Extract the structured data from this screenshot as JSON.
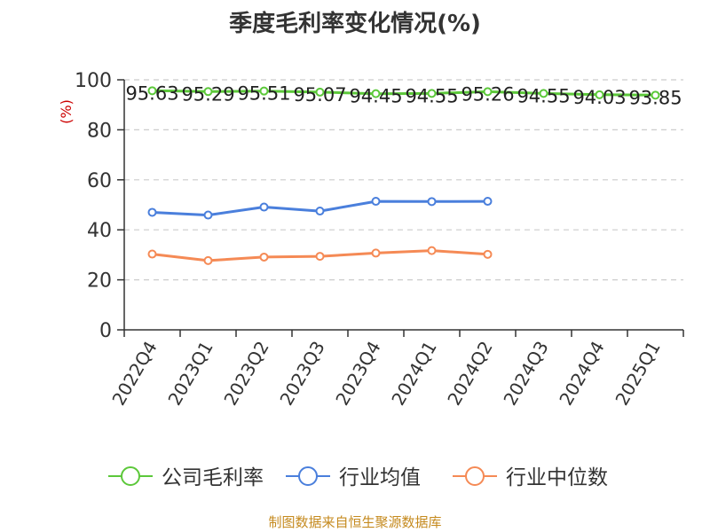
{
  "title": "季度毛利率变化情况(%)",
  "source": "制图数据来自恒生聚源数据库",
  "colors": {
    "company": "#5cc83a",
    "industry_avg": "#4a7fdc",
    "industry_median": "#f58a55",
    "axis": "#333333",
    "grid": "#cccccc",
    "unit": "#cc0000"
  },
  "chart_data": {
    "type": "line",
    "title": "季度毛利率变化情况(%)",
    "ylabel": "(%)",
    "ylim": [
      0,
      100
    ],
    "yticks": [
      0,
      20,
      40,
      60,
      80,
      100
    ],
    "grid": true,
    "legend_position": "bottom",
    "categories": [
      "2022Q4",
      "2023Q1",
      "2023Q2",
      "2023Q3",
      "2023Q4",
      "2024Q1",
      "2024Q2",
      "2024Q3",
      "2024Q4",
      "2025Q1"
    ],
    "series": [
      {
        "name": "公司毛利率",
        "color_key": "company",
        "values": [
          95.63,
          95.29,
          95.51,
          95.07,
          94.45,
          94.55,
          95.26,
          94.55,
          94.03,
          93.85
        ],
        "labels": [
          "95.63",
          "95.29",
          "95.51",
          "95.07",
          "94.45",
          "94.55",
          "95.26",
          "94.55",
          "94.03",
          "93.85"
        ]
      },
      {
        "name": "行业均值",
        "color_key": "industry_avg",
        "values": [
          47.0,
          45.9,
          49.1,
          47.5,
          51.4,
          51.3,
          51.4,
          null,
          null,
          null
        ]
      },
      {
        "name": "行业中位数",
        "color_key": "industry_median",
        "values": [
          30.3,
          27.7,
          29.1,
          29.4,
          30.7,
          31.7,
          30.2,
          null,
          null,
          null
        ]
      }
    ]
  }
}
